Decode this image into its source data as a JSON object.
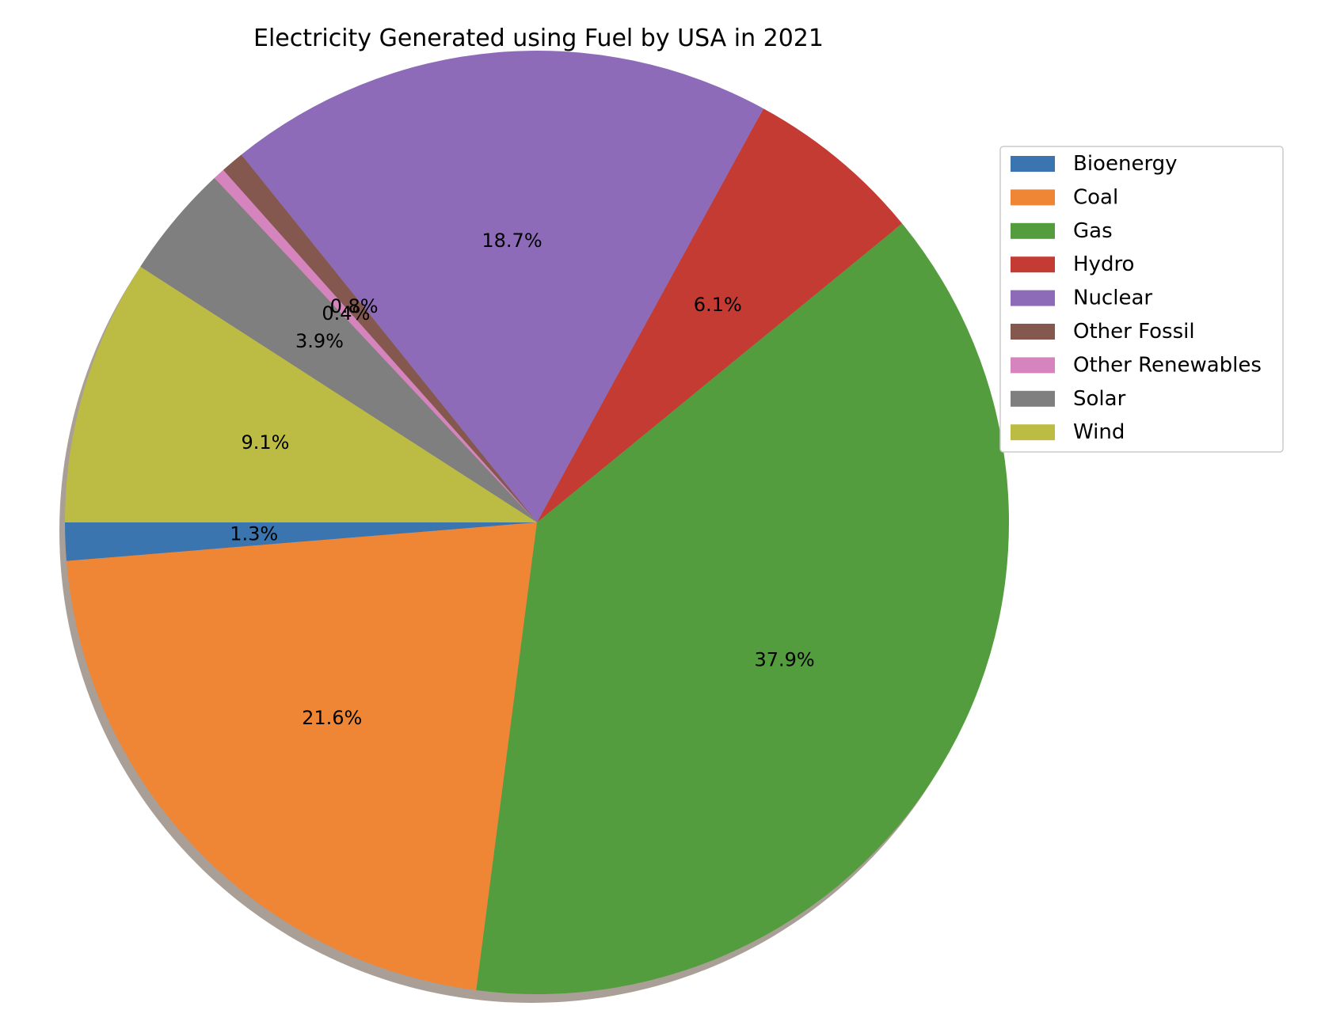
{
  "chart_data": {
    "type": "pie",
    "title": "Electricity Generated using Fuel by USA in 2021",
    "start_angle_deg": 180,
    "direction": "counterclockwise",
    "shadow": true,
    "legend_position": "right",
    "slices": [
      {
        "name": "Bioenergy",
        "value": 1.3,
        "label": "1.3%",
        "color": "#3a75af"
      },
      {
        "name": "Coal",
        "value": 21.6,
        "label": "21.6%",
        "color": "#ee8636"
      },
      {
        "name": "Gas",
        "value": 37.9,
        "label": "37.9%",
        "color": "#539d3e"
      },
      {
        "name": "Hydro",
        "value": 6.1,
        "label": "6.1%",
        "color": "#c43b33"
      },
      {
        "name": "Nuclear",
        "value": 18.7,
        "label": "18.7%",
        "color": "#8d6bb8"
      },
      {
        "name": "Other Fossil",
        "value": 0.8,
        "label": "0.8%",
        "color": "#84584e"
      },
      {
        "name": "Other Renewables",
        "value": 0.4,
        "label": "0.4%",
        "color": "#d584bd"
      },
      {
        "name": "Solar",
        "value": 3.9,
        "label": "3.9%",
        "color": "#7f7f7f"
      },
      {
        "name": "Wind",
        "value": 9.1,
        "label": "9.1%",
        "color": "#bcbc45"
      }
    ]
  }
}
